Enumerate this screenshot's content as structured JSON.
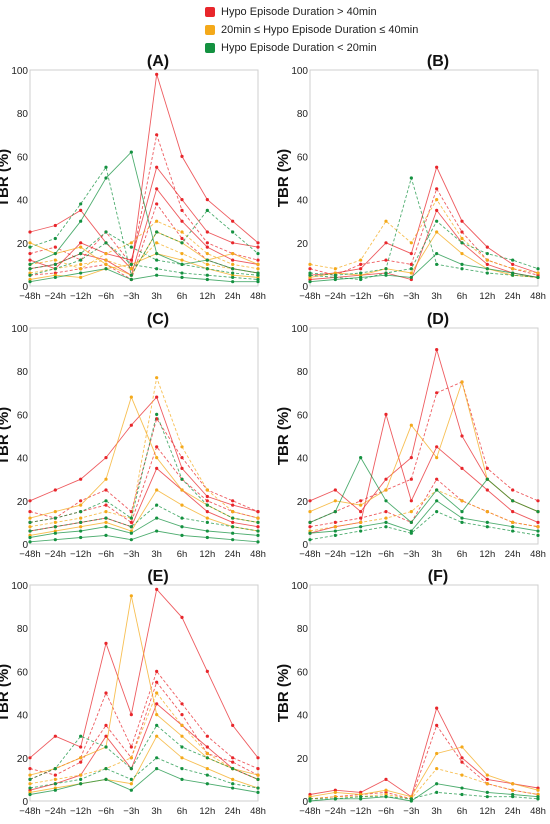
{
  "legend": {
    "items": [
      {
        "label": "Hypo Episode Duration > 40min",
        "color": "#e8262b"
      },
      {
        "label": "20min ≤ Hypo Episode Duration ≤ 40min",
        "color": "#f4a91a"
      },
      {
        "label": "Hypo Episode Duration < 20min",
        "color": "#149140"
      }
    ]
  },
  "chart_data": [
    {
      "type": "line",
      "title": "(A)",
      "ylabel": "TBR (%)",
      "xlabel": "",
      "categories": [
        "−48h",
        "−24h",
        "−12h",
        "−6h",
        "−3h",
        "3h",
        "6h",
        "12h",
        "24h",
        "48h"
      ],
      "ylim": [
        0,
        100
      ],
      "yticks": [
        0,
        20,
        40,
        60,
        80,
        100
      ],
      "series": [
        {
          "group": "red",
          "values": [
            25,
            28,
            35,
            20,
            8,
            98,
            60,
            40,
            30,
            20
          ]
        },
        {
          "group": "red",
          "values": [
            15,
            18,
            12,
            25,
            10,
            70,
            35,
            20,
            15,
            12
          ]
        },
        {
          "group": "red",
          "values": [
            8,
            10,
            15,
            12,
            5,
            45,
            30,
            18,
            12,
            10
          ]
        },
        {
          "group": "red",
          "values": [
            5,
            6,
            8,
            10,
            3,
            38,
            22,
            12,
            8,
            6
          ]
        },
        {
          "group": "red",
          "values": [
            12,
            8,
            20,
            15,
            12,
            55,
            40,
            25,
            20,
            18
          ]
        },
        {
          "group": "orange",
          "values": [
            10,
            12,
            8,
            15,
            20,
            30,
            25,
            15,
            10,
            8
          ]
        },
        {
          "group": "orange",
          "values": [
            20,
            15,
            18,
            10,
            5,
            25,
            20,
            12,
            15,
            10
          ]
        },
        {
          "group": "orange",
          "values": [
            6,
            8,
            10,
            12,
            8,
            20,
            15,
            10,
            8,
            6
          ]
        },
        {
          "group": "orange",
          "values": [
            3,
            5,
            4,
            8,
            10,
            15,
            12,
            8,
            5,
            4
          ]
        },
        {
          "group": "green",
          "values": [
            18,
            22,
            38,
            55,
            5,
            25,
            20,
            35,
            25,
            15
          ]
        },
        {
          "group": "green",
          "values": [
            10,
            15,
            30,
            50,
            62,
            15,
            10,
            12,
            8,
            6
          ]
        },
        {
          "group": "green",
          "values": [
            5,
            8,
            12,
            20,
            10,
            8,
            6,
            5,
            4,
            3
          ]
        },
        {
          "group": "green",
          "values": [
            2,
            4,
            6,
            8,
            3,
            5,
            4,
            3,
            2,
            2
          ]
        },
        {
          "group": "green",
          "values": [
            8,
            10,
            15,
            25,
            18,
            12,
            10,
            8,
            6,
            5
          ]
        }
      ]
    },
    {
      "type": "line",
      "title": "(B)",
      "ylabel": "TBR (%)",
      "xlabel": "",
      "categories": [
        "−48h",
        "−24h",
        "−12h",
        "−6h",
        "−3h",
        "3h",
        "6h",
        "12h",
        "24h",
        "48h"
      ],
      "ylim": [
        0,
        100
      ],
      "yticks": [
        0,
        20,
        40,
        60,
        80,
        100
      ],
      "series": [
        {
          "group": "red",
          "values": [
            5,
            6,
            8,
            20,
            15,
            55,
            30,
            18,
            10,
            6
          ]
        },
        {
          "group": "red",
          "values": [
            8,
            5,
            10,
            12,
            10,
            45,
            25,
            12,
            8,
            5
          ]
        },
        {
          "group": "red",
          "values": [
            3,
            4,
            5,
            6,
            3,
            35,
            20,
            10,
            6,
            4
          ]
        },
        {
          "group": "orange",
          "values": [
            10,
            8,
            12,
            30,
            20,
            40,
            22,
            12,
            8,
            6
          ]
        },
        {
          "group": "orange",
          "values": [
            4,
            6,
            5,
            8,
            6,
            25,
            15,
            8,
            5,
            4
          ]
        },
        {
          "group": "green",
          "values": [
            6,
            5,
            6,
            8,
            50,
            10,
            8,
            6,
            5,
            4
          ]
        },
        {
          "group": "green",
          "values": [
            2,
            3,
            4,
            5,
            4,
            15,
            10,
            8,
            6,
            4
          ]
        },
        {
          "group": "green",
          "values": [
            5,
            4,
            3,
            6,
            8,
            30,
            20,
            15,
            12,
            8
          ]
        }
      ]
    },
    {
      "type": "line",
      "title": "(C)",
      "ylabel": "TBR (%)",
      "xlabel": "",
      "categories": [
        "−48h",
        "−24h",
        "−12h",
        "−6h",
        "−3h",
        "3h",
        "6h",
        "12h",
        "24h",
        "48h"
      ],
      "ylim": [
        0,
        100
      ],
      "yticks": [
        0,
        20,
        40,
        60,
        80,
        100
      ],
      "series": [
        {
          "group": "red",
          "values": [
            20,
            25,
            30,
            40,
            55,
            68,
            35,
            22,
            18,
            15
          ]
        },
        {
          "group": "red",
          "values": [
            10,
            12,
            15,
            18,
            10,
            45,
            30,
            20,
            15,
            12
          ]
        },
        {
          "group": "red",
          "values": [
            6,
            8,
            10,
            12,
            8,
            35,
            25,
            15,
            10,
            8
          ]
        },
        {
          "group": "red",
          "values": [
            15,
            12,
            20,
            25,
            15,
            58,
            40,
            25,
            20,
            15
          ]
        },
        {
          "group": "orange",
          "values": [
            12,
            15,
            18,
            30,
            68,
            40,
            25,
            18,
            12,
            10
          ]
        },
        {
          "group": "orange",
          "values": [
            8,
            10,
            12,
            15,
            12,
            77,
            45,
            25,
            15,
            12
          ]
        },
        {
          "group": "orange",
          "values": [
            4,
            6,
            8,
            10,
            6,
            25,
            18,
            12,
            8,
            6
          ]
        },
        {
          "group": "green",
          "values": [
            10,
            12,
            15,
            20,
            12,
            60,
            30,
            18,
            12,
            10
          ]
        },
        {
          "group": "green",
          "values": [
            3,
            5,
            6,
            8,
            5,
            12,
            8,
            6,
            5,
            4
          ]
        },
        {
          "group": "green",
          "values": [
            6,
            8,
            10,
            12,
            8,
            18,
            12,
            10,
            8,
            6
          ]
        },
        {
          "group": "green",
          "values": [
            1,
            2,
            3,
            4,
            2,
            6,
            4,
            3,
            2,
            1
          ]
        }
      ]
    },
    {
      "type": "line",
      "title": "(D)",
      "ylabel": "TBR (%)",
      "xlabel": "",
      "categories": [
        "−48h",
        "−24h",
        "−12h",
        "−6h",
        "−3h",
        "3h",
        "6h",
        "12h",
        "24h",
        "48h"
      ],
      "ylim": [
        0,
        100
      ],
      "yticks": [
        0,
        20,
        40,
        60,
        80,
        100
      ],
      "series": [
        {
          "group": "red",
          "values": [
            20,
            25,
            15,
            30,
            40,
            90,
            50,
            30,
            20,
            15
          ]
        },
        {
          "group": "red",
          "values": [
            10,
            15,
            20,
            25,
            30,
            70,
            75,
            35,
            25,
            20
          ]
        },
        {
          "group": "red",
          "values": [
            5,
            8,
            10,
            60,
            20,
            45,
            35,
            25,
            15,
            10
          ]
        },
        {
          "group": "red",
          "values": [
            8,
            10,
            12,
            15,
            10,
            30,
            20,
            15,
            10,
            8
          ]
        },
        {
          "group": "orange",
          "values": [
            15,
            20,
            18,
            25,
            55,
            40,
            75,
            30,
            20,
            15
          ]
        },
        {
          "group": "orange",
          "values": [
            6,
            8,
            10,
            12,
            15,
            25,
            20,
            15,
            10,
            8
          ]
        },
        {
          "group": "green",
          "values": [
            10,
            15,
            40,
            20,
            10,
            25,
            15,
            30,
            20,
            15
          ]
        },
        {
          "group": "green",
          "values": [
            2,
            4,
            6,
            8,
            5,
            15,
            10,
            8,
            6,
            4
          ]
        },
        {
          "group": "green",
          "values": [
            5,
            6,
            8,
            10,
            6,
            20,
            12,
            10,
            8,
            6
          ]
        }
      ]
    },
    {
      "type": "line",
      "title": "(E)",
      "ylabel": "TBR (%)",
      "xlabel": "",
      "categories": [
        "−48h",
        "−24h",
        "−12h",
        "−6h",
        "−3h",
        "3h",
        "6h",
        "12h",
        "24h",
        "48h"
      ],
      "ylim": [
        0,
        100
      ],
      "yticks": [
        0,
        20,
        40,
        60,
        80,
        100
      ],
      "series": [
        {
          "group": "red",
          "values": [
            20,
            30,
            25,
            73,
            40,
            98,
            85,
            60,
            35,
            20
          ]
        },
        {
          "group": "red",
          "values": [
            10,
            15,
            20,
            50,
            25,
            60,
            45,
            30,
            20,
            15
          ]
        },
        {
          "group": "red",
          "values": [
            5,
            8,
            12,
            30,
            15,
            45,
            35,
            25,
            15,
            10
          ]
        },
        {
          "group": "red",
          "values": [
            15,
            12,
            18,
            35,
            20,
            55,
            40,
            22,
            18,
            12
          ]
        },
        {
          "group": "orange",
          "values": [
            12,
            15,
            20,
            25,
            95,
            40,
            30,
            20,
            15,
            12
          ]
        },
        {
          "group": "orange",
          "values": [
            8,
            10,
            12,
            15,
            20,
            50,
            35,
            22,
            15,
            10
          ]
        },
        {
          "group": "orange",
          "values": [
            4,
            6,
            8,
            10,
            8,
            30,
            20,
            15,
            10,
            6
          ]
        },
        {
          "group": "green",
          "values": [
            10,
            15,
            30,
            25,
            15,
            35,
            25,
            20,
            15,
            10
          ]
        },
        {
          "group": "green",
          "values": [
            3,
            5,
            8,
            10,
            5,
            15,
            10,
            8,
            6,
            4
          ]
        },
        {
          "group": "green",
          "values": [
            6,
            8,
            10,
            15,
            10,
            20,
            15,
            12,
            8,
            6
          ]
        }
      ]
    },
    {
      "type": "line",
      "title": "(F)",
      "ylabel": "TBR (%)",
      "xlabel": "",
      "categories": [
        "−48h",
        "−24h",
        "−12h",
        "−6h",
        "−3h",
        "3h",
        "6h",
        "12h",
        "24h",
        "48h"
      ],
      "ylim": [
        0,
        100
      ],
      "yticks": [
        0,
        20,
        40,
        60,
        80,
        100
      ],
      "series": [
        {
          "group": "red",
          "values": [
            3,
            5,
            4,
            10,
            2,
            43,
            20,
            10,
            8,
            6
          ]
        },
        {
          "group": "red",
          "values": [
            1,
            2,
            3,
            4,
            1,
            35,
            18,
            8,
            5,
            3
          ]
        },
        {
          "group": "orange",
          "values": [
            2,
            4,
            3,
            5,
            2,
            22,
            25,
            12,
            8,
            5
          ]
        },
        {
          "group": "orange",
          "values": [
            1,
            2,
            2,
            3,
            1,
            15,
            12,
            8,
            5,
            3
          ]
        },
        {
          "group": "green",
          "values": [
            0,
            1,
            1,
            2,
            0,
            8,
            6,
            4,
            3,
            2
          ]
        },
        {
          "group": "green",
          "values": [
            1,
            1,
            2,
            2,
            1,
            4,
            3,
            2,
            2,
            1
          ]
        }
      ]
    }
  ]
}
